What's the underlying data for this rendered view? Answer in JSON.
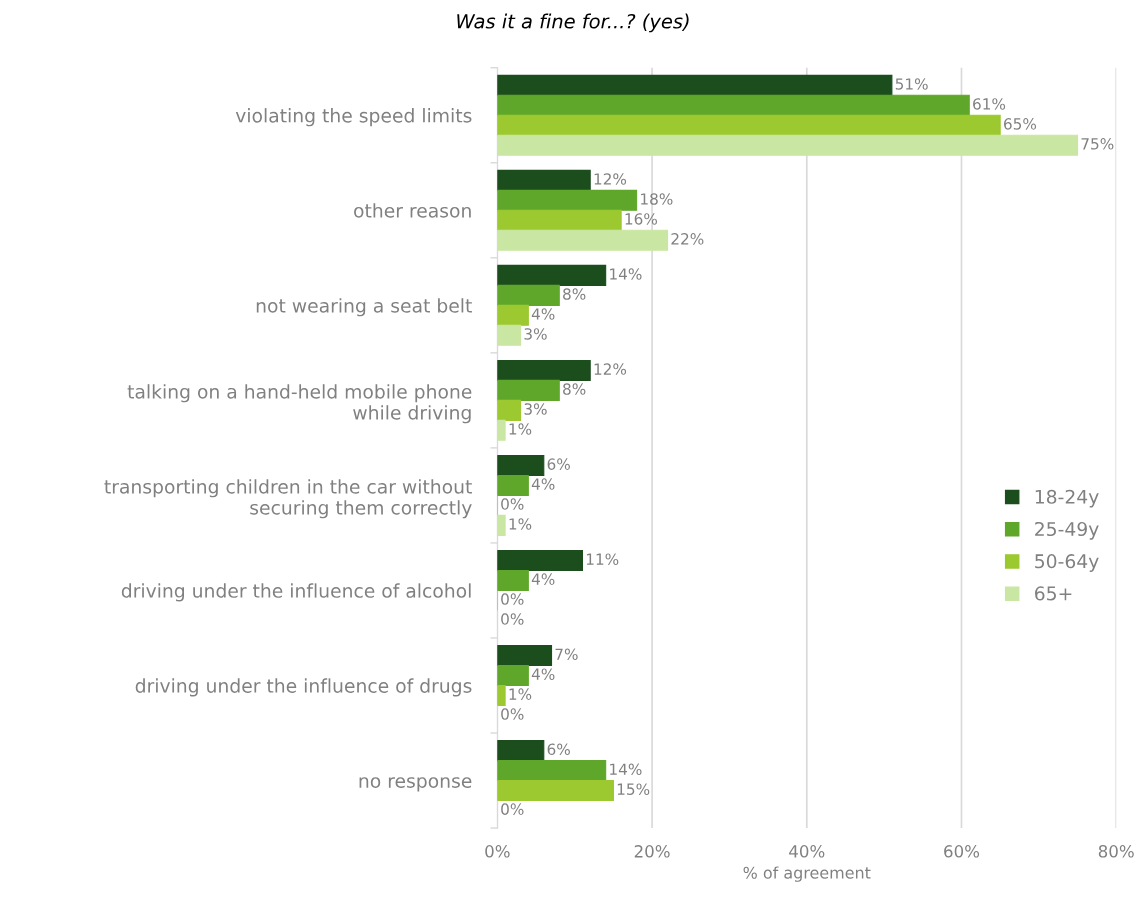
{
  "chart_data": {
    "type": "bar",
    "orientation": "horizontal",
    "title": "Was it a fine for...? (yes)",
    "xlabel": "% of agreement",
    "categories": [
      "violating the speed limits",
      "other reason",
      "not wearing a seat belt",
      "talking on a hand-held mobile phone\nwhile driving",
      "transporting children in the car without\nsecuring them correctly",
      "driving under the influence of alcohol",
      "driving under the influence of drugs",
      "no response"
    ],
    "series": [
      {
        "name": "18-24y",
        "color": "#1b4d1d",
        "values": [
          51,
          12,
          14,
          12,
          6,
          11,
          7,
          6
        ],
        "value_labels": [
          "51%",
          "12%",
          "14%",
          "12%",
          "6%",
          "11%",
          "7%",
          "6%"
        ]
      },
      {
        "name": "25-49y",
        "color": "#5fa72a",
        "values": [
          61,
          18,
          8,
          8,
          4,
          4,
          4,
          14
        ],
        "value_labels": [
          "61%",
          "18%",
          "8%",
          "8%",
          "4%",
          "4%",
          "4%",
          "14%"
        ]
      },
      {
        "name": "50-64y",
        "color": "#9bc92f",
        "values": [
          65,
          16,
          4,
          3,
          0,
          0,
          1,
          15
        ],
        "value_labels": [
          "65%",
          "16%",
          "4%",
          "3%",
          "0%",
          "0%",
          "1%",
          "15%"
        ]
      },
      {
        "name": "65+",
        "color": "#cae6a3",
        "values": [
          75,
          22,
          3,
          1,
          1,
          0,
          0,
          0
        ],
        "value_labels": [
          "75%",
          "22%",
          "3%",
          "1%",
          "1%",
          "0%",
          "0%",
          "0%"
        ]
      }
    ],
    "xlim": [
      0,
      80
    ],
    "xticks": [
      {
        "value": 0,
        "label": "0%"
      },
      {
        "value": 20,
        "label": "20%"
      },
      {
        "value": 40,
        "label": "40%"
      },
      {
        "value": 60,
        "label": "60%"
      },
      {
        "value": 80,
        "label": "80%"
      }
    ],
    "grid": "x",
    "legend": "right"
  }
}
